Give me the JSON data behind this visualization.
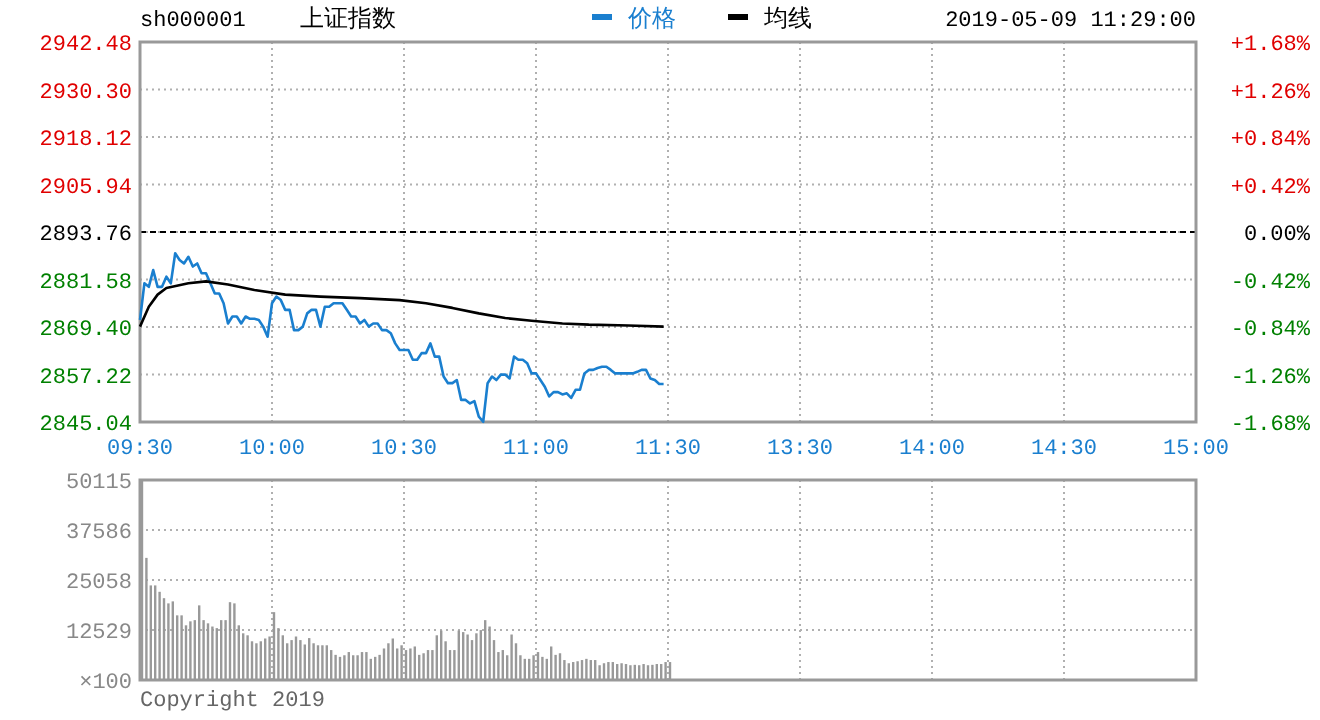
{
  "chart_data": [
    {
      "type": "line",
      "title": "上证指数",
      "subtitle": "sh000001",
      "annotations": [
        "2019-05-09 11:29:00"
      ],
      "legend": "top",
      "grid": true,
      "categories": [
        "09:30",
        null,
        null,
        null,
        null,
        null,
        null,
        null,
        null,
        null,
        null,
        null,
        null,
        null,
        null,
        null,
        null,
        null,
        null,
        null,
        null,
        null,
        null,
        null,
        null,
        null,
        null,
        null,
        null,
        null,
        "10:00",
        null,
        null,
        null,
        null,
        null,
        null,
        null,
        null,
        null,
        null,
        null,
        null,
        null,
        null,
        null,
        null,
        null,
        null,
        null,
        null,
        null,
        null,
        null,
        null,
        null,
        null,
        null,
        null,
        null,
        "10:30",
        null,
        null,
        null,
        null,
        null,
        null,
        null,
        null,
        null,
        null,
        null,
        null,
        null,
        null,
        null,
        null,
        null,
        null,
        null,
        null,
        null,
        null,
        null,
        null,
        null,
        null,
        null,
        null,
        null,
        "11:00",
        null,
        null,
        null,
        null,
        null,
        null,
        null,
        null,
        null,
        null,
        null,
        null,
        null,
        null,
        null,
        null,
        null,
        null,
        null,
        null,
        null,
        null,
        null,
        null,
        null,
        null,
        null,
        null,
        null,
        "11:30",
        null,
        null,
        null,
        null,
        null,
        null,
        null,
        null,
        null,
        null,
        null,
        null,
        null,
        null,
        null,
        null,
        null,
        null,
        null,
        null,
        null,
        null,
        null,
        null,
        null,
        null,
        null,
        null,
        null,
        "13:30",
        null,
        null,
        null,
        null,
        null,
        null,
        null,
        null,
        null,
        null,
        null,
        null,
        null,
        null,
        null,
        null,
        null,
        null,
        null,
        null,
        null,
        null,
        null,
        null,
        null,
        null,
        null,
        null,
        null,
        "14:00",
        null,
        null,
        null,
        null,
        null,
        null,
        null,
        null,
        null,
        null,
        null,
        null,
        null,
        null,
        null,
        null,
        null,
        null,
        null,
        null,
        null,
        null,
        null,
        null,
        null,
        null,
        null,
        null,
        null,
        "14:30",
        null,
        null,
        null,
        null,
        null,
        null,
        null,
        null,
        null,
        null,
        null,
        null,
        null,
        null,
        null,
        null,
        null,
        null,
        null,
        null,
        null,
        null,
        null,
        null,
        null,
        null,
        null,
        null,
        null,
        "15:00"
      ],
      "ylim": [
        2845.04,
        2942.48
      ],
      "yticks": [
        2845.04,
        2857.22,
        {
          "value": 2869.4,
          "label": "2869.40"
        },
        2881.58,
        2893.76,
        2905.94,
        2918.12,
        {
          "value": 2930.3,
          "label": "2930.30"
        },
        2942.48
      ],
      "y2lim": [
        -1.68,
        1.68
      ],
      "y2ticks": [
        {
          "value": -1.68,
          "label": "-1.68%"
        },
        {
          "value": -1.26,
          "label": "-1.26%"
        },
        {
          "value": -0.84,
          "label": "-0.84%"
        },
        {
          "value": -0.42,
          "label": "-0.42%"
        },
        {
          "value": 0,
          "label": "0.00%"
        },
        {
          "value": 0.42,
          "label": "+0.42%"
        },
        {
          "value": 0.84,
          "label": "+0.84%"
        },
        {
          "value": 1.26,
          "label": "+1.26%"
        },
        {
          "value": 1.68,
          "label": "+1.68%"
        }
      ],
      "ref_lines": [
        {
          "axis": "y",
          "value": 2893.76,
          "color": "#000000",
          "line_style": "dashed"
        }
      ],
      "series": [
        {
          "name": "价格",
          "color": "#1a7fcf",
          "values": [
            2871.2,
            2880.6,
            2879.7,
            2884.0,
            2879.7,
            2879.7,
            2882.3,
            2880.6,
            2888.3,
            2886.6,
            2885.7,
            2887.4,
            2884.9,
            2885.7,
            2883.2,
            2883.2,
            2880.6,
            2878.0,
            2878.0,
            2875.5,
            2870.3,
            2872.1,
            2872.1,
            2870.3,
            2872.1,
            2871.5,
            2871.5,
            2871.2,
            2869.5,
            2866.9,
            2875.5,
            2877.2,
            2876.3,
            2873.8,
            2873.8,
            2868.6,
            2868.6,
            2869.5,
            2872.9,
            2873.8,
            2873.8,
            2869.5,
            2874.6,
            2874.6,
            2875.5,
            2875.5,
            2875.5,
            2873.8,
            2872.1,
            2872.1,
            2870.3,
            2871.2,
            2869.5,
            2870.3,
            2870.3,
            2868.6,
            2868.6,
            2867.8,
            2865.2,
            2863.5,
            2863.5,
            2863.5,
            2861.0,
            2861.0,
            2862.7,
            2862.7,
            2865.2,
            2861.8,
            2861.8,
            2856.7,
            2855.0,
            2855.0,
            2855.8,
            2850.7,
            2850.7,
            2849.8,
            2850.4,
            2846.4,
            2845.1,
            2855.0,
            2856.7,
            2855.8,
            2857.2,
            2857.2,
            2856.2,
            2861.8,
            2861.0,
            2861.0,
            2860.1,
            2857.5,
            2857.5,
            2855.8,
            2854.1,
            2851.6,
            2852.7,
            2852.7,
            2852.1,
            2852.4,
            2851.2,
            2853.3,
            2853.3,
            2857.5,
            2858.4,
            2858.4,
            2858.9,
            2859.2,
            2859.2,
            2858.4,
            2857.5,
            2857.5,
            2857.5,
            2857.5,
            2857.5,
            2857.9,
            2858.4,
            2858.4,
            2856.2,
            2855.8,
            2854.8,
            2854.8,
            null,
            null,
            null,
            null,
            null,
            null,
            null,
            null,
            null,
            null,
            null,
            null,
            null,
            null,
            null,
            null,
            null,
            null,
            null,
            null,
            null,
            null,
            null,
            null,
            null,
            null,
            null,
            null,
            null,
            null,
            null,
            null,
            null,
            null,
            null,
            null,
            null,
            null,
            null,
            null,
            null,
            null,
            null,
            null,
            null,
            null,
            null,
            null,
            null,
            null,
            null,
            null,
            null,
            null,
            null,
            null,
            null,
            null,
            null,
            null,
            null,
            null,
            null,
            null,
            null,
            null,
            null,
            null,
            null,
            null,
            null,
            null,
            null,
            null,
            null,
            null,
            null,
            null,
            null,
            null,
            null,
            null,
            null,
            null,
            null,
            null,
            null,
            null,
            null,
            null,
            null,
            null,
            null,
            null,
            null,
            null,
            null,
            null,
            null,
            null,
            null,
            null,
            null,
            null,
            null,
            null,
            null,
            null,
            null,
            null,
            null,
            null,
            null,
            null,
            null,
            null,
            null,
            null,
            null,
            null,
            null
          ]
        },
        {
          "name": "均线",
          "color": "#000000",
          "values": [
            2869.5,
            null,
            2874.6,
            null,
            2877.7,
            null,
            2879.4,
            null,
            null,
            null,
            null,
            2880.6,
            null,
            null,
            null,
            2881.1,
            null,
            null,
            null,
            null,
            2880.3,
            null,
            null,
            null,
            null,
            null,
            2878.9,
            null,
            null,
            null,
            null,
            null,
            null,
            2877.7,
            null,
            null,
            null,
            null,
            null,
            null,
            null,
            2877.2,
            null,
            null,
            null,
            null,
            null,
            null,
            null,
            null,
            2876.8,
            null,
            null,
            null,
            null,
            null,
            null,
            null,
            null,
            2876.3,
            null,
            null,
            null,
            null,
            null,
            2875.5,
            null,
            null,
            null,
            null,
            null,
            2874.3,
            null,
            null,
            null,
            null,
            null,
            2872.9,
            null,
            null,
            null,
            null,
            null,
            2871.7,
            null,
            null,
            null,
            null,
            null,
            2871.0,
            null,
            null,
            null,
            null,
            null,
            null,
            2870.3,
            null,
            null,
            null,
            null,
            null,
            2870.0,
            null,
            null,
            null,
            null,
            null,
            null,
            null,
            null,
            2869.8,
            null,
            null,
            null,
            null,
            null,
            null,
            null,
            2869.5,
            null,
            null,
            null,
            null,
            null,
            null,
            null,
            null,
            null,
            null,
            null,
            null,
            null,
            null,
            null,
            null,
            null,
            null,
            null,
            null,
            null,
            null,
            null,
            null,
            null,
            null,
            null,
            null,
            null,
            null,
            null,
            null,
            null,
            null,
            null,
            null,
            null,
            null,
            null,
            null,
            null,
            null,
            null,
            null,
            null,
            null,
            null,
            null,
            null,
            null,
            null,
            null,
            null,
            null,
            null,
            null,
            null,
            null,
            null,
            null,
            null,
            null,
            null,
            null,
            null,
            null,
            null,
            null,
            null,
            null,
            null,
            null,
            null,
            null,
            null,
            null,
            null,
            null,
            null,
            null,
            null,
            null,
            null,
            null,
            null,
            null,
            null,
            null,
            null,
            null,
            null,
            null,
            null,
            null,
            null,
            null,
            null,
            null,
            null,
            null,
            null,
            null,
            null,
            null,
            null,
            null,
            null,
            null,
            null,
            null,
            null,
            null,
            null,
            null,
            null,
            null,
            null,
            null,
            null,
            null,
            null
          ]
        }
      ]
    },
    {
      "type": "bar",
      "ylabel": "×100",
      "annotations": [
        "Copyright 2019"
      ],
      "grid": true,
      "tick_labels": "y",
      "categories": [
        null,
        null,
        null,
        null,
        null,
        null,
        null,
        null,
        null,
        null,
        null,
        null,
        null,
        null,
        null,
        null,
        null,
        null,
        null,
        null,
        null,
        null,
        null,
        null,
        null,
        null,
        null,
        null,
        null,
        null,
        null,
        null,
        null,
        null,
        null,
        null,
        null,
        null,
        null,
        null,
        null,
        null,
        null,
        null,
        null,
        null,
        null,
        null,
        null,
        null,
        null,
        null,
        null,
        null,
        null,
        null,
        null,
        null,
        null,
        null,
        null,
        null,
        null,
        null,
        null,
        null,
        null,
        null,
        null,
        null,
        null,
        null,
        null,
        null,
        null,
        null,
        null,
        null,
        null,
        null,
        null,
        null,
        null,
        null,
        null,
        null,
        null,
        null,
        null,
        null,
        null,
        null,
        null,
        null,
        null,
        null,
        null,
        null,
        null,
        null,
        null,
        null,
        null,
        null,
        null,
        null,
        null,
        null,
        null,
        null,
        null,
        null,
        null,
        null,
        null,
        null,
        null,
        null,
        null,
        null,
        null,
        null,
        null,
        null,
        null,
        null,
        null,
        null,
        null,
        null,
        null,
        null,
        null,
        null,
        null,
        null,
        null,
        null,
        null,
        null,
        null,
        null,
        null,
        null,
        null,
        null,
        null,
        null,
        null,
        null,
        null,
        null,
        null,
        null,
        null,
        null,
        null,
        null,
        null,
        null,
        null,
        null,
        null,
        null,
        null,
        null,
        null,
        null,
        null,
        null,
        null,
        null,
        null,
        null,
        null,
        null,
        null,
        null,
        null,
        null,
        null,
        null,
        null,
        null,
        null,
        null,
        null,
        null,
        null,
        null,
        null,
        null,
        null,
        null,
        null,
        null,
        null,
        null,
        null,
        null,
        null,
        null,
        null,
        null,
        null,
        null,
        null,
        null,
        null,
        null,
        null,
        null,
        null,
        null,
        null,
        null,
        null,
        null,
        null,
        null,
        null,
        null,
        null,
        null,
        null,
        null,
        null,
        null,
        null,
        null,
        null,
        null,
        null,
        null,
        null,
        null,
        null,
        null,
        null,
        null,
        null
      ],
      "ylim": [
        0,
        50115
      ],
      "yticks": [
        12529,
        25058,
        37586,
        50115
      ],
      "series": [
        {
          "color": "#999999",
          "values": [
            50100,
            30600,
            23700,
            23700,
            22100,
            20500,
            19200,
            19700,
            16200,
            16200,
            13700,
            14700,
            15000,
            18700,
            15000,
            14200,
            13400,
            13000,
            15000,
            15000,
            19500,
            19200,
            13700,
            11700,
            11200,
            9700,
            9200,
            9700,
            10400,
            10900,
            17000,
            13000,
            11200,
            9200,
            10000,
            10900,
            10000,
            8900,
            10500,
            9200,
            8700,
            8700,
            8700,
            7500,
            6300,
            5800,
            6200,
            7000,
            6200,
            6200,
            7000,
            7000,
            5300,
            5800,
            6300,
            7900,
            9200,
            10400,
            7900,
            8700,
            7500,
            7900,
            8400,
            6300,
            6700,
            7500,
            7500,
            11200,
            12400,
            9700,
            7500,
            7500,
            12400,
            12000,
            11400,
            10000,
            11700,
            12500,
            15000,
            13400,
            10000,
            7000,
            7500,
            6200,
            11400,
            9200,
            6200,
            5300,
            5300,
            6200,
            7000,
            5800,
            5300,
            8400,
            6300,
            6700,
            5000,
            4200,
            4500,
            4700,
            5000,
            5300,
            5000,
            5000,
            3700,
            4200,
            4500,
            4500,
            4000,
            4200,
            4000,
            3700,
            3800,
            3700,
            4000,
            3700,
            3800,
            4000,
            4000,
            4500,
            4500,
            null,
            null,
            null,
            null,
            null,
            null,
            null,
            null,
            null,
            null,
            null,
            null,
            null,
            null,
            null,
            null,
            null,
            null,
            null,
            null,
            null,
            null,
            null,
            null,
            null,
            null,
            null,
            null,
            null,
            null,
            null,
            null,
            null,
            null,
            null,
            null,
            null,
            null,
            null,
            null,
            null,
            null,
            null,
            null,
            null,
            null,
            null,
            null,
            null,
            null,
            null,
            null,
            null,
            null,
            null,
            null,
            null,
            null,
            null,
            null,
            null,
            null,
            null,
            null,
            null,
            null,
            null,
            null,
            null,
            null,
            null,
            null,
            null,
            null,
            null,
            null,
            null,
            null,
            null,
            null,
            null,
            null,
            null,
            null,
            null,
            null,
            null,
            null,
            null,
            null,
            null,
            null,
            null,
            null,
            null,
            null,
            null,
            null,
            null,
            null,
            null,
            null,
            null,
            null,
            null,
            null,
            null,
            null,
            null,
            null,
            null,
            null,
            null,
            null,
            null,
            null,
            null,
            null,
            null,
            null
          ]
        }
      ]
    }
  ]
}
